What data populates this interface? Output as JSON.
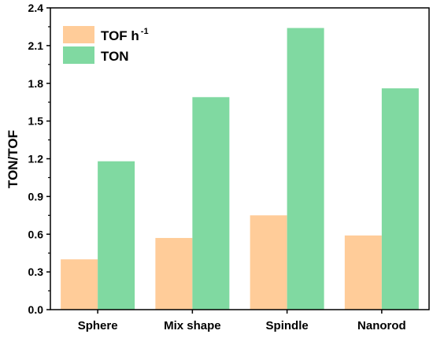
{
  "chart_data": {
    "type": "bar",
    "categories": [
      "Sphere",
      "Mix shape",
      "Spindle",
      "Nanorod"
    ],
    "series": [
      {
        "name": "TOF h",
        "name_superscript": "-1",
        "color": "#FFCC99",
        "values": [
          0.4,
          0.57,
          0.75,
          0.59
        ]
      },
      {
        "name": "TON",
        "color": "#80D9A1",
        "values": [
          1.18,
          1.69,
          2.24,
          1.76
        ]
      }
    ],
    "title": "",
    "xlabel": "",
    "ylabel": "TON/TOF",
    "ylim": [
      0.0,
      2.4
    ],
    "yticks": [
      0.0,
      0.3,
      0.6,
      0.9,
      1.2,
      1.5,
      1.8,
      2.1,
      2.4
    ],
    "ytick_labels": [
      "0.0",
      "0.3",
      "0.6",
      "0.9",
      "1.2",
      "1.5",
      "1.8",
      "2.1",
      "2.4"
    ],
    "grid": false,
    "legend_position": "top-left"
  }
}
